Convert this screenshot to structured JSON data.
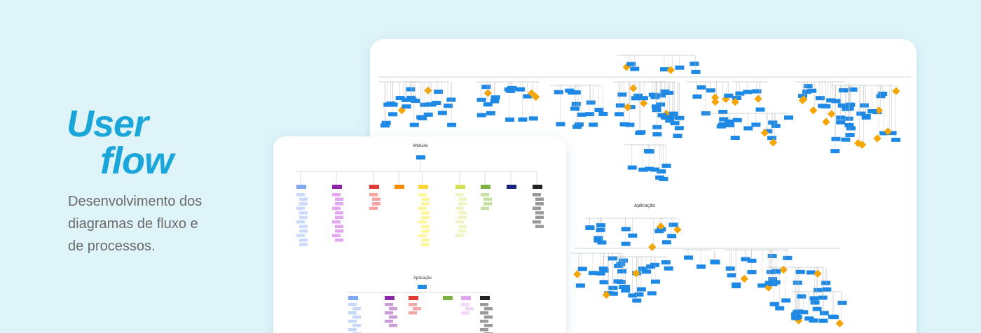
{
  "header": {
    "title_line1": "User",
    "title_line2": "flow",
    "subtitle_lines": [
      "Desenvolvimento dos",
      "diagramas de fluxo e",
      "de processos."
    ]
  },
  "back_card": {
    "section_title": "Aplicação"
  },
  "front_card": {
    "section_titles": [
      "Website",
      "Aplicação"
    ]
  }
}
